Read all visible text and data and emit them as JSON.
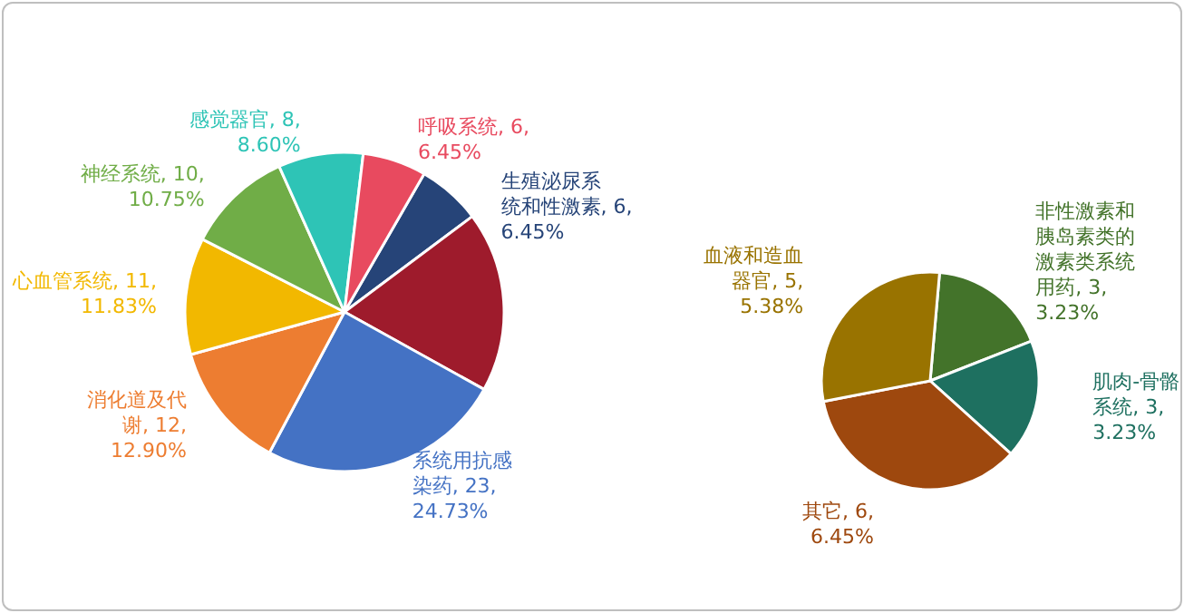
{
  "chart_data": [
    {
      "type": "pie",
      "categories": [
        "生殖泌尿系统和性激素",
        null,
        "系统用抗感染药",
        "消化道及代谢",
        "心血管系统",
        "神经系统",
        "感觉器官",
        "呼吸系统"
      ],
      "values": [
        6,
        17,
        23,
        12,
        11,
        10,
        8,
        6
      ],
      "colors": [
        "#264478",
        "#9e1b2c",
        "#4472c4",
        "#ed7d31",
        "#f2b800",
        "#70ad47",
        "#2ec4b6",
        "#e84a5f"
      ],
      "value_labels": [
        "6, 6.45%",
        null,
        "23, 24.73%",
        "12, 12.90%",
        "11, 11.83%",
        "10, 10.75%",
        "8, 8.60%",
        "6, 6.45%"
      ]
    },
    {
      "type": "pie",
      "categories": [
        "非性激素和胰岛素类的激素类系统用药",
        "肌肉-骨骼系统",
        "其它",
        "血液和造血器官"
      ],
      "values": [
        3,
        3,
        6,
        5
      ],
      "colors": [
        "#43732a",
        "#1e7060",
        "#9e480e",
        "#997300"
      ],
      "value_labels": [
        "3, 3.23%",
        "3, 3.23%",
        "6, 6.45%",
        "5, 5.38%"
      ]
    }
  ]
}
